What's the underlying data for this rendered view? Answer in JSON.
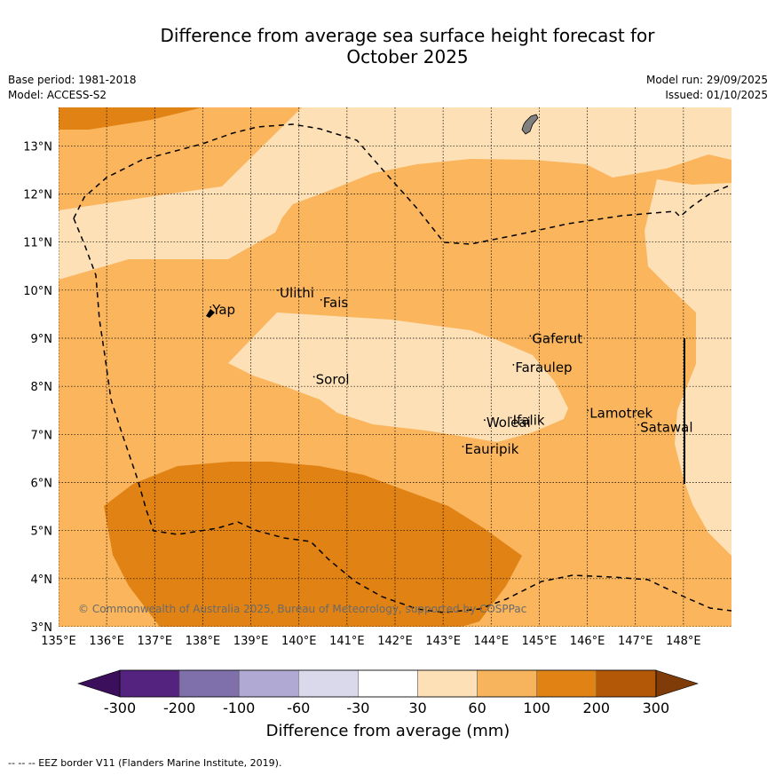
{
  "header": {
    "title_line1": "Difference from average sea surface height forecast for",
    "title_line2": "October 2025",
    "base_period": "Base period: 1981-2018",
    "model": "Model: ACCESS-S2",
    "model_run": "Model run: 29/09/2025",
    "issued": "Issued: 01/10/2025"
  },
  "map": {
    "lon_ticks": [
      "135°E",
      "136°E",
      "137°E",
      "138°E",
      "139°E",
      "140°E",
      "141°E",
      "142°E",
      "143°E",
      "144°E",
      "145°E",
      "146°E",
      "147°E",
      "148°E"
    ],
    "lat_ticks": [
      "3°N",
      "4°N",
      "5°N",
      "6°N",
      "7°N",
      "8°N",
      "9°N",
      "10°N",
      "11°N",
      "12°N",
      "13°N"
    ],
    "lon_range": [
      135,
      149
    ],
    "lat_range": [
      3,
      13.8
    ],
    "places": [
      {
        "name": "Yap",
        "lon": 138.2,
        "lat": 9.5
      },
      {
        "name": "Ulithi",
        "lon": 139.6,
        "lat": 9.85
      },
      {
        "name": "Fais",
        "lon": 140.5,
        "lat": 9.65
      },
      {
        "name": "Sorol",
        "lon": 140.35,
        "lat": 8.05
      },
      {
        "name": "Gaferut",
        "lon": 144.85,
        "lat": 8.9
      },
      {
        "name": "Faraulep",
        "lon": 144.5,
        "lat": 8.3
      },
      {
        "name": "Woleai",
        "lon": 143.9,
        "lat": 7.15
      },
      {
        "name": "Ifalik",
        "lon": 144.45,
        "lat": 7.2
      },
      {
        "name": "Lamotrek",
        "lon": 146.05,
        "lat": 7.35
      },
      {
        "name": "Satawal",
        "lon": 147.1,
        "lat": 7.05
      },
      {
        "name": "Eauripik",
        "lon": 143.45,
        "lat": 6.6
      }
    ],
    "copyright": "© Commonwealth of Australia 2025, Bureau of Meteorology, supported by COSPPac"
  },
  "colorbar": {
    "labels": [
      "-300",
      "-200",
      "-100",
      "-60",
      "-30",
      "30",
      "60",
      "100",
      "200",
      "300"
    ],
    "colors": [
      "#3b0f5c",
      "#54237f",
      "#7f70ab",
      "#b0a9d3",
      "#dad9eb",
      "#ffffff",
      "#fde0b6",
      "#f8b45c",
      "#e08214",
      "#b25806",
      "#7f3b08"
    ],
    "title": "Difference from average (mm)"
  },
  "legend": {
    "eez_note": "--  --  -- EEZ border V11 (Flanders Marine Institute, 2019)."
  }
}
